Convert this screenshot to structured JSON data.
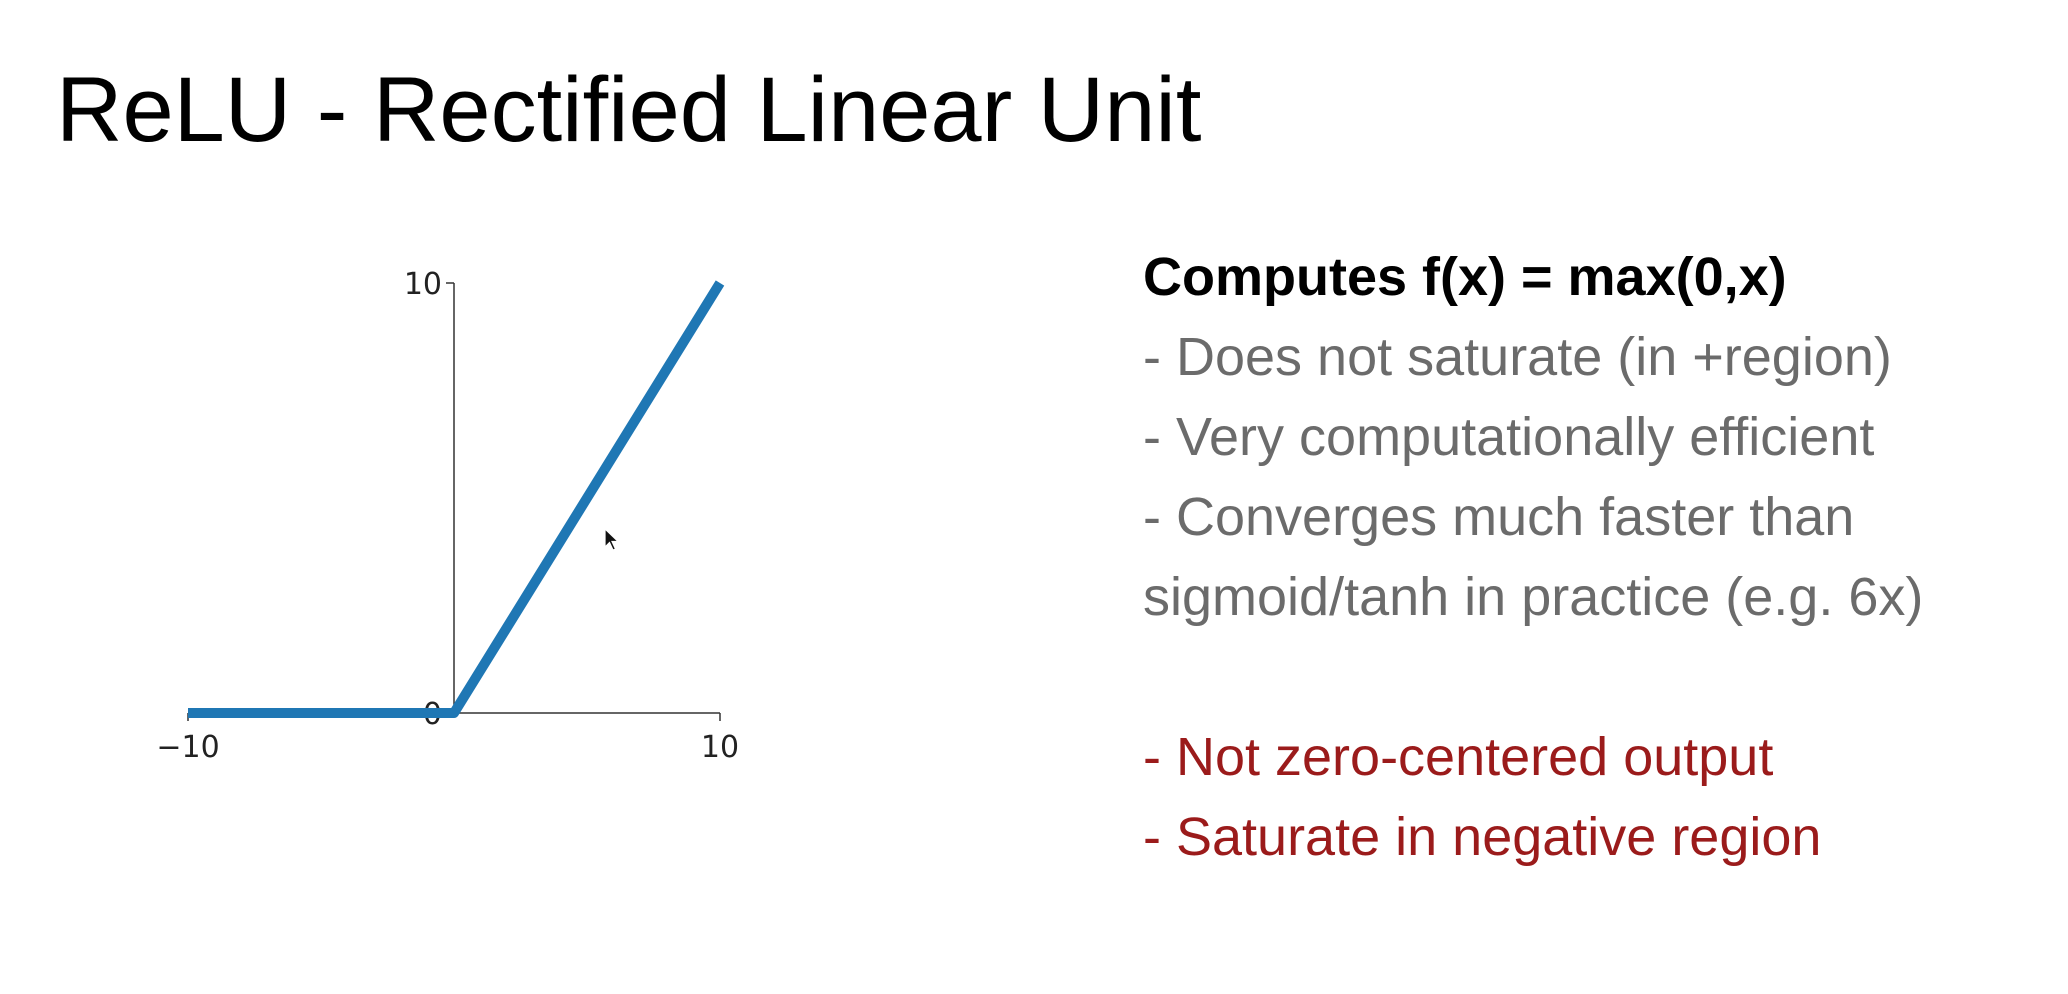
{
  "slide": {
    "title": "ReLU - Rectified Linear Unit"
  },
  "chart_data": {
    "type": "line",
    "series": [
      {
        "x": [
          -10,
          0,
          10
        ],
        "y": [
          0,
          0,
          10
        ],
        "color": "#1f77b4"
      }
    ],
    "xlim": [
      -10,
      10
    ],
    "ylim": [
      0,
      10
    ],
    "x_ticks": [
      "−10",
      "10"
    ],
    "y_ticks": [
      "0",
      "10"
    ],
    "grid": false
  },
  "text_panel": {
    "heading": "Computes f(x) = max(0,x)",
    "pros": [
      "- Does not saturate (in +region)",
      "- Very computationally efficient",
      "- Converges much faster than",
      "sigmoid/tanh in practice (e.g. 6x)"
    ],
    "cons": [
      "- Not zero-centered output",
      "- Saturate in negative region"
    ]
  },
  "colors": {
    "line": "#1f77b4",
    "pro_text": "#6b6b6b",
    "con_text": "#9b1b1b"
  },
  "icons": {
    "cursor": "mouse-pointer-icon"
  }
}
